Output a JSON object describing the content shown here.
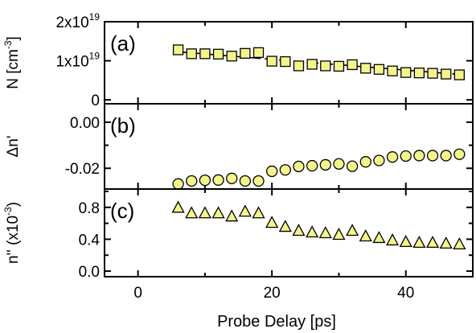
{
  "chart_data": [
    {
      "type": "scatter",
      "panel_label": "(a)",
      "ylabel": "N [cm",
      "ylabel_sup": "-3",
      "ylabel_tail": "]",
      "xlim": [
        -5,
        50
      ],
      "ylim": [
        -1e+18,
        2e+19
      ],
      "yticks": [
        0,
        1e+19,
        2e+19
      ],
      "ytick_labels": [
        "0",
        "1x10",
        "2x10"
      ],
      "ytick_sups": [
        "",
        "19",
        "19"
      ],
      "marker": "square",
      "marker_color": "#f4f48c",
      "fit_line": {
        "style": "dashed",
        "x": [
          6,
          48
        ],
        "y": [
          1.23e+19,
          6.5e+18
        ]
      },
      "x": [
        6,
        8,
        10,
        12,
        14,
        16,
        18,
        20,
        22,
        24,
        26,
        28,
        30,
        32,
        34,
        36,
        38,
        40,
        42,
        44,
        46,
        48
      ],
      "y": [
        1.28e+19,
        1.18e+19,
        1.18e+19,
        1.17e+19,
        1.12e+19,
        1.19e+19,
        1.21e+19,
        9.9e+18,
        9.8e+18,
        8.7e+18,
        9.1e+18,
        8.7e+18,
        8.6e+18,
        9e+18,
        8.1e+18,
        7.8e+18,
        7.4e+18,
        7e+18,
        6.9e+18,
        6.8e+18,
        6.6e+18,
        6.4e+18
      ]
    },
    {
      "type": "scatter",
      "panel_label": "(b)",
      "ylabel": "Δn'",
      "xlim": [
        -5,
        50
      ],
      "ylim": [
        -0.029,
        0.008
      ],
      "yticks": [
        0.0,
        -0.02
      ],
      "ytick_labels": [
        "0.00",
        "-0.02"
      ],
      "minor_yticks": [
        -0.01
      ],
      "marker": "circle",
      "marker_color": "#f4f48c",
      "x": [
        6,
        8,
        10,
        12,
        14,
        16,
        18,
        20,
        22,
        24,
        26,
        28,
        30,
        32,
        34,
        36,
        38,
        40,
        42,
        44,
        46,
        48
      ],
      "y": [
        -0.0268,
        -0.0255,
        -0.0252,
        -0.0251,
        -0.0244,
        -0.0255,
        -0.0255,
        -0.0213,
        -0.0207,
        -0.0192,
        -0.0189,
        -0.0185,
        -0.0181,
        -0.0191,
        -0.0172,
        -0.0166,
        -0.0151,
        -0.0147,
        -0.0145,
        -0.0145,
        -0.0145,
        -0.0139
      ]
    },
    {
      "type": "scatter",
      "panel_label": "(c)",
      "ylabel": "n'' (x10",
      "ylabel_sup": "-3",
      "ylabel_tail": ")",
      "xlim": [
        -5,
        50
      ],
      "ylim": [
        -0.07,
        1.03
      ],
      "yticks": [
        0.0,
        0.4,
        0.8
      ],
      "ytick_labels": [
        "0.0",
        "0.4",
        "0.8"
      ],
      "minor_yticks": [
        0.2,
        0.6,
        1.0
      ],
      "marker": "triangle",
      "marker_color": "#f4f48c",
      "x": [
        6,
        8,
        10,
        12,
        14,
        16,
        18,
        20,
        22,
        24,
        26,
        28,
        30,
        32,
        34,
        36,
        38,
        40,
        42,
        44,
        46,
        48
      ],
      "y": [
        0.8,
        0.73,
        0.73,
        0.73,
        0.69,
        0.75,
        0.73,
        0.61,
        0.56,
        0.51,
        0.49,
        0.48,
        0.46,
        0.51,
        0.44,
        0.42,
        0.39,
        0.37,
        0.36,
        0.36,
        0.35,
        0.34
      ]
    }
  ],
  "x_axis": {
    "label": "Probe Delay [ps]",
    "ticks": [
      0,
      20,
      40
    ],
    "tick_labels": [
      "0",
      "20",
      "40"
    ],
    "minor_ticks": [
      10,
      30,
      50
    ]
  }
}
